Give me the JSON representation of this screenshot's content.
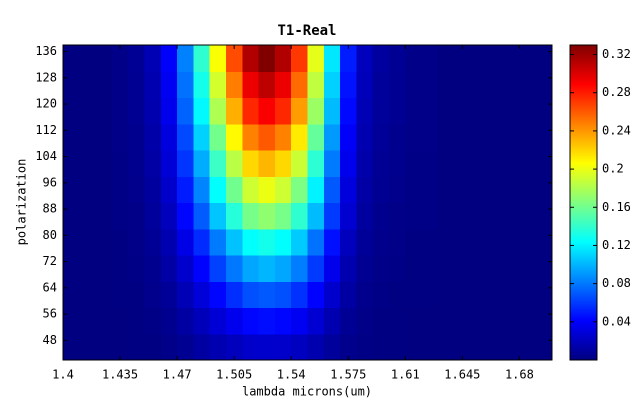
{
  "chart_data": {
    "type": "heatmap",
    "title": "T1-Real",
    "x_label": "lambda microns(um)",
    "y_label": "polarization",
    "x": [
      1.405,
      1.415,
      1.425,
      1.435,
      1.445,
      1.455,
      1.465,
      1.475,
      1.485,
      1.495,
      1.505,
      1.515,
      1.525,
      1.535,
      1.545,
      1.555,
      1.565,
      1.575,
      1.585,
      1.595,
      1.605,
      1.615,
      1.625,
      1.635,
      1.645,
      1.655,
      1.665,
      1.675,
      1.685,
      1.695
    ],
    "y": [
      46,
      54,
      62,
      70,
      78,
      86,
      94,
      102,
      110,
      118,
      126,
      134
    ],
    "z": [
      [
        0,
        0,
        0,
        0,
        0.001,
        0.001,
        0.003,
        0.006,
        0.011,
        0.016,
        0.02,
        0.024,
        0.025,
        0.024,
        0.021,
        0.015,
        0.009,
        0.004,
        0.002,
        0.001,
        0.001,
        0,
        0,
        0,
        0,
        0,
        0,
        0,
        0,
        0
      ],
      [
        0,
        0,
        0,
        0,
        0.001,
        0.002,
        0.005,
        0.011,
        0.019,
        0.028,
        0.036,
        0.043,
        0.045,
        0.043,
        0.037,
        0.027,
        0.016,
        0.007,
        0.003,
        0.001,
        0.001,
        0,
        0,
        0,
        0,
        0,
        0,
        0,
        0,
        0
      ],
      [
        0,
        0,
        0,
        0.001,
        0.001,
        0.004,
        0.008,
        0.018,
        0.029,
        0.043,
        0.056,
        0.067,
        0.07,
        0.067,
        0.057,
        0.042,
        0.025,
        0.011,
        0.004,
        0.002,
        0.001,
        0.001,
        0.001,
        0,
        0,
        0,
        0,
        0,
        0,
        0
      ],
      [
        0,
        0,
        0,
        0.001,
        0.002,
        0.005,
        0.012,
        0.025,
        0.042,
        0.062,
        0.08,
        0.095,
        0.1,
        0.095,
        0.082,
        0.06,
        0.035,
        0.015,
        0.006,
        0.003,
        0.002,
        0.001,
        0.001,
        0,
        0,
        0,
        0,
        0,
        0,
        0
      ],
      [
        0,
        0,
        0,
        0.001,
        0.003,
        0.007,
        0.016,
        0.033,
        0.055,
        0.081,
        0.104,
        0.124,
        0.13,
        0.124,
        0.107,
        0.078,
        0.046,
        0.02,
        0.008,
        0.004,
        0.003,
        0.001,
        0.001,
        0,
        0,
        0,
        0,
        0,
        0,
        0
      ],
      [
        0,
        0,
        0,
        0.002,
        0.003,
        0.009,
        0.02,
        0.043,
        0.071,
        0.105,
        0.136,
        0.162,
        0.17,
        0.162,
        0.139,
        0.102,
        0.06,
        0.026,
        0.01,
        0.005,
        0.003,
        0.002,
        0.002,
        0,
        0,
        0,
        0,
        0,
        0,
        0
      ],
      [
        0,
        0,
        0,
        0.002,
        0.004,
        0.01,
        0.024,
        0.05,
        0.084,
        0.124,
        0.16,
        0.19,
        0.2,
        0.19,
        0.164,
        0.12,
        0.07,
        0.03,
        0.012,
        0.006,
        0.004,
        0.002,
        0.002,
        0,
        0,
        0,
        0,
        0,
        0,
        0
      ],
      [
        0,
        0,
        0,
        0.002,
        0.005,
        0.012,
        0.028,
        0.058,
        0.097,
        0.143,
        0.184,
        0.219,
        0.23,
        0.219,
        0.189,
        0.138,
        0.081,
        0.035,
        0.014,
        0.007,
        0.005,
        0.002,
        0.002,
        0,
        0,
        0,
        0,
        0,
        0,
        0
      ],
      [
        0,
        0,
        0,
        0.003,
        0.005,
        0.013,
        0.031,
        0.065,
        0.109,
        0.161,
        0.208,
        0.247,
        0.26,
        0.247,
        0.213,
        0.156,
        0.091,
        0.039,
        0.016,
        0.008,
        0.005,
        0.003,
        0.003,
        0,
        0,
        0,
        0,
        0,
        0,
        0
      ],
      [
        0,
        0,
        0,
        0.003,
        0.006,
        0.015,
        0.035,
        0.073,
        0.122,
        0.18,
        0.232,
        0.276,
        0.29,
        0.276,
        0.238,
        0.174,
        0.102,
        0.044,
        0.017,
        0.009,
        0.006,
        0.003,
        0.003,
        0,
        0,
        0,
        0,
        0,
        0,
        0
      ],
      [
        0,
        0,
        0,
        0.003,
        0.006,
        0.016,
        0.037,
        0.078,
        0.13,
        0.192,
        0.248,
        0.295,
        0.31,
        0.295,
        0.254,
        0.186,
        0.109,
        0.047,
        0.019,
        0.009,
        0.006,
        0.003,
        0.003,
        0,
        0,
        0,
        0,
        0,
        0,
        0
      ],
      [
        0,
        0,
        0,
        0.003,
        0.007,
        0.017,
        0.04,
        0.083,
        0.139,
        0.205,
        0.264,
        0.314,
        0.33,
        0.314,
        0.271,
        0.198,
        0.116,
        0.05,
        0.02,
        0.01,
        0.007,
        0.003,
        0.003,
        0,
        0,
        0,
        0,
        0,
        0,
        0
      ]
    ],
    "colormap": "jet",
    "clim": [
      0,
      0.33
    ],
    "xlim": [
      1.4,
      1.7
    ],
    "ylim": [
      42,
      138
    ],
    "xticks": [
      1.4,
      1.435,
      1.47,
      1.505,
      1.54,
      1.575,
      1.61,
      1.645,
      1.68
    ],
    "yticks": [
      48,
      56,
      64,
      72,
      80,
      88,
      96,
      104,
      112,
      120,
      128,
      136
    ],
    "cticks": [
      0.04,
      0.08,
      0.12,
      0.16,
      0.2,
      0.24,
      0.28,
      0.32
    ]
  }
}
